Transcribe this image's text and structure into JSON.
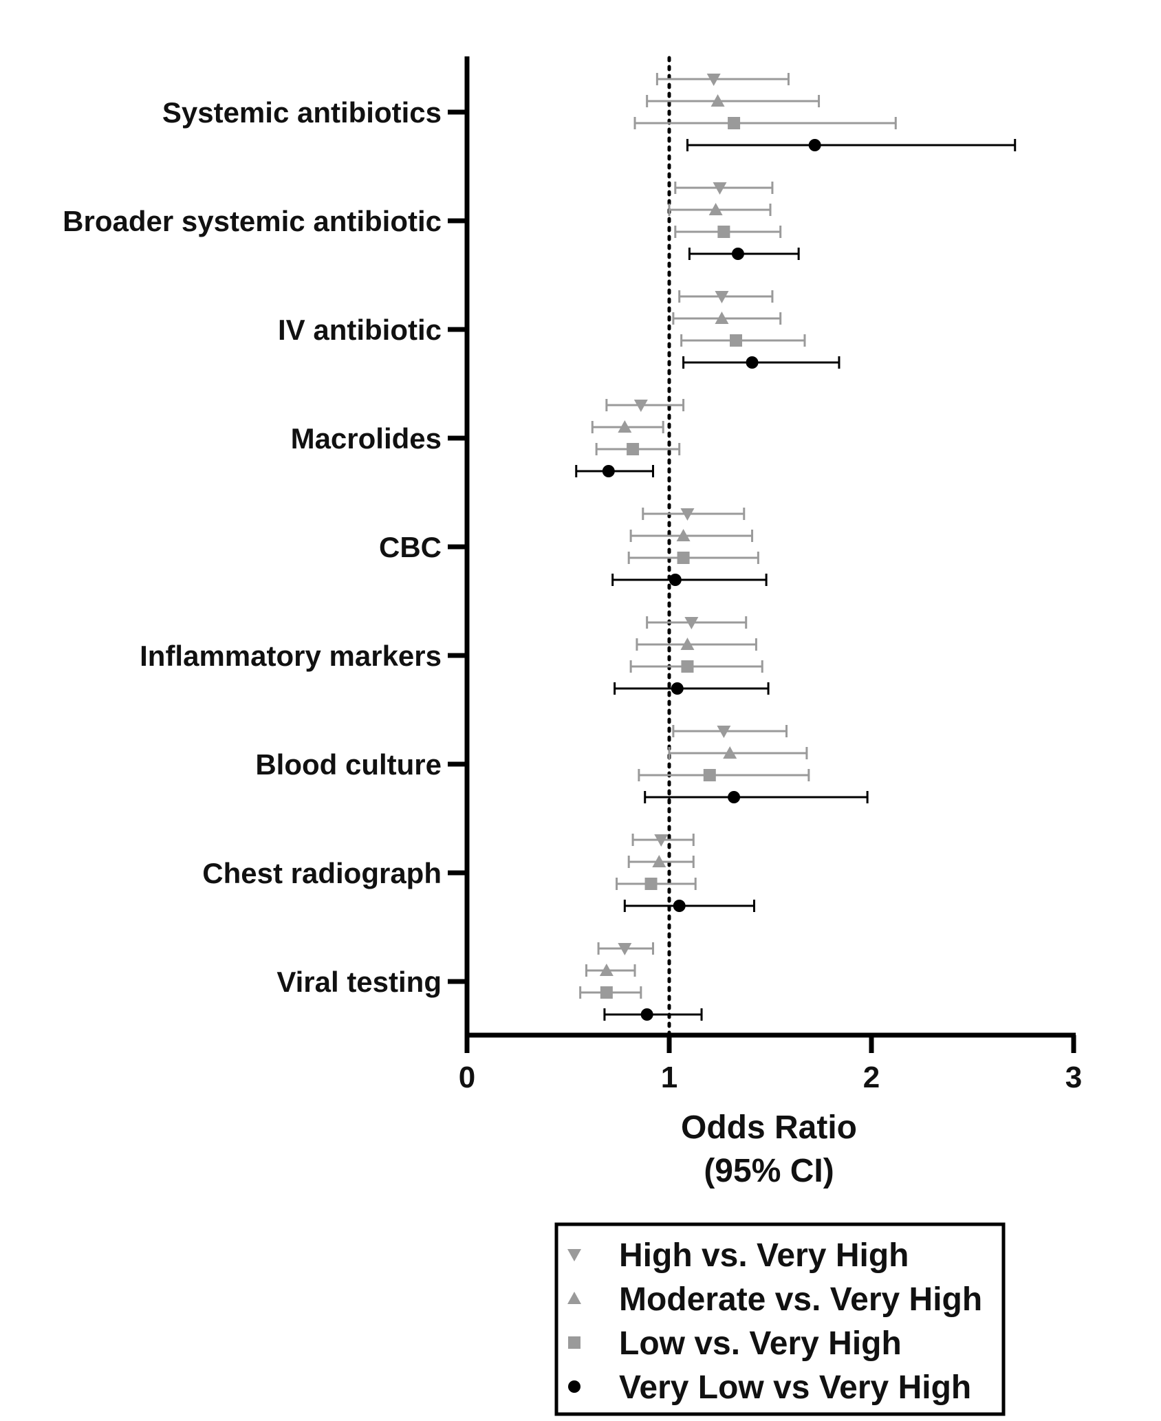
{
  "chart_data": {
    "type": "forest",
    "xlabel": "Odds Ratio",
    "xlabel_sub": "(95% CI)",
    "xlim": [
      0,
      3
    ],
    "xticks": [
      0,
      1,
      2,
      3
    ],
    "reference_line": 1,
    "categories": [
      "Systemic antibiotics",
      "Broader systemic antibiotic",
      "IV antibiotic",
      "Macrolides",
      "CBC",
      "Inflammatory markers",
      "Blood culture",
      "Chest radiograph",
      "Viral testing"
    ],
    "series": [
      {
        "name": "High vs. Very High",
        "marker": "triangle-down",
        "color": "#9a9a9a",
        "points": [
          {
            "or": 1.22,
            "lo": 0.94,
            "hi": 1.59
          },
          {
            "or": 1.25,
            "lo": 1.03,
            "hi": 1.51
          },
          {
            "or": 1.26,
            "lo": 1.05,
            "hi": 1.51
          },
          {
            "or": 0.86,
            "lo": 0.69,
            "hi": 1.07
          },
          {
            "or": 1.09,
            "lo": 0.87,
            "hi": 1.37
          },
          {
            "or": 1.11,
            "lo": 0.89,
            "hi": 1.38
          },
          {
            "or": 1.27,
            "lo": 1.02,
            "hi": 1.58
          },
          {
            "or": 0.96,
            "lo": 0.82,
            "hi": 1.12
          },
          {
            "or": 0.78,
            "lo": 0.65,
            "hi": 0.92
          }
        ]
      },
      {
        "name": "Moderate vs. Very High",
        "marker": "triangle-up",
        "color": "#9a9a9a",
        "points": [
          {
            "or": 1.24,
            "lo": 0.89,
            "hi": 1.74
          },
          {
            "or": 1.23,
            "lo": 1.0,
            "hi": 1.5
          },
          {
            "or": 1.26,
            "lo": 1.02,
            "hi": 1.55
          },
          {
            "or": 0.78,
            "lo": 0.62,
            "hi": 0.97
          },
          {
            "or": 1.07,
            "lo": 0.81,
            "hi": 1.41
          },
          {
            "or": 1.09,
            "lo": 0.84,
            "hi": 1.43
          },
          {
            "or": 1.3,
            "lo": 1.0,
            "hi": 1.68
          },
          {
            "or": 0.95,
            "lo": 0.8,
            "hi": 1.12
          },
          {
            "or": 0.69,
            "lo": 0.59,
            "hi": 0.83
          }
        ]
      },
      {
        "name": "Low vs. Very High",
        "marker": "square",
        "color": "#9a9a9a",
        "points": [
          {
            "or": 1.32,
            "lo": 0.83,
            "hi": 2.12
          },
          {
            "or": 1.27,
            "lo": 1.03,
            "hi": 1.55
          },
          {
            "or": 1.33,
            "lo": 1.06,
            "hi": 1.67
          },
          {
            "or": 0.82,
            "lo": 0.64,
            "hi": 1.05
          },
          {
            "or": 1.07,
            "lo": 0.8,
            "hi": 1.44
          },
          {
            "or": 1.09,
            "lo": 0.81,
            "hi": 1.46
          },
          {
            "or": 1.2,
            "lo": 0.85,
            "hi": 1.69
          },
          {
            "or": 0.91,
            "lo": 0.74,
            "hi": 1.13
          },
          {
            "or": 0.69,
            "lo": 0.56,
            "hi": 0.86
          }
        ]
      },
      {
        "name": "Very Low vs Very High",
        "marker": "circle",
        "color": "#000000",
        "points": [
          {
            "or": 1.72,
            "lo": 1.09,
            "hi": 2.71
          },
          {
            "or": 1.34,
            "lo": 1.1,
            "hi": 1.64
          },
          {
            "or": 1.41,
            "lo": 1.07,
            "hi": 1.84
          },
          {
            "or": 0.7,
            "lo": 0.54,
            "hi": 0.92
          },
          {
            "or": 1.03,
            "lo": 0.72,
            "hi": 1.48
          },
          {
            "or": 1.04,
            "lo": 0.73,
            "hi": 1.49
          },
          {
            "or": 1.32,
            "lo": 0.88,
            "hi": 1.98
          },
          {
            "or": 1.05,
            "lo": 0.78,
            "hi": 1.42
          },
          {
            "or": 0.89,
            "lo": 0.68,
            "hi": 1.16
          }
        ]
      }
    ],
    "legend_position": "bottom"
  }
}
